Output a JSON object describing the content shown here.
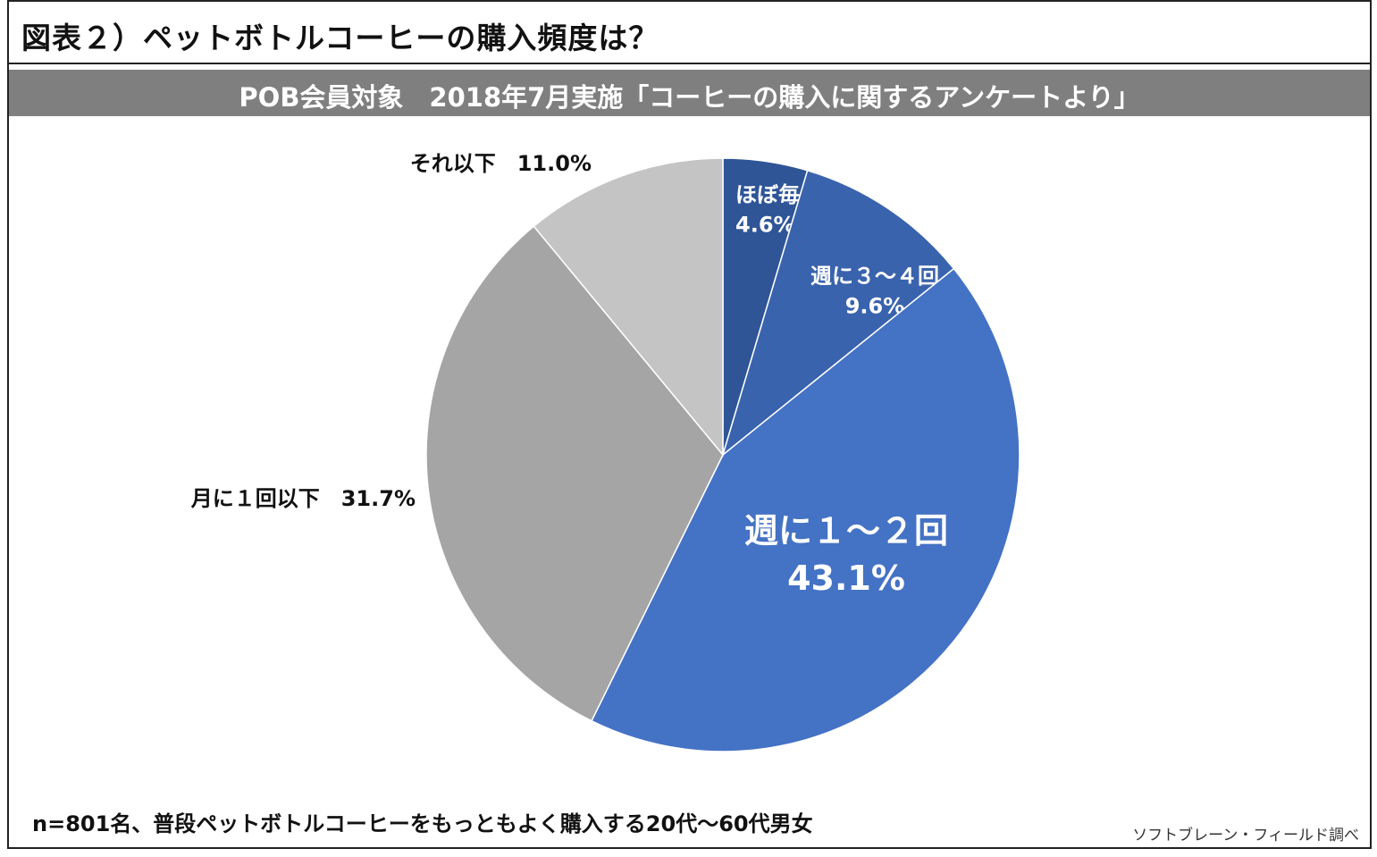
{
  "title": "図表２）ペットボトルコーヒーの購入頻度は？",
  "subtitle": "POB会員対象　2018年7月実施「コーヒーの購入に関するアンケートより」",
  "footnote": "n=801名、普段ペットボトルコーヒーをもっともよく購入する20代〜60代男女",
  "source": "ソフトブレーン・フィールド調べ",
  "chart_data": {
    "type": "pie",
    "title": "",
    "unit": "%",
    "slices": [
      {
        "label": "ほぼ毎日",
        "value": 4.6,
        "value_text": "4.6%",
        "color": "#2f5597",
        "label_color": "#ffffff"
      },
      {
        "label": "週に３〜４回",
        "value": 9.6,
        "value_text": "9.6%",
        "color": "#3a63ad",
        "label_color": "#ffffff"
      },
      {
        "label": "週に１〜２回",
        "value": 43.1,
        "value_text": "43.1%",
        "color": "#4472c4",
        "label_color": "#ffffff"
      },
      {
        "label": "月に１回以下",
        "value": 31.7,
        "value_text": "31.7%",
        "color": "#a5a5a5",
        "label_color": "#111111"
      },
      {
        "label": "それ以下",
        "value": 11.0,
        "value_text": "11.0%",
        "color": "#c4c4c4",
        "label_color": "#111111"
      }
    ]
  }
}
